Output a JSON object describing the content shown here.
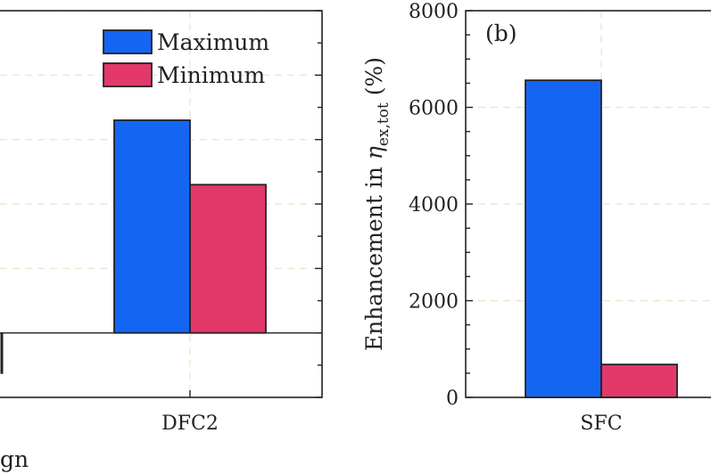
{
  "colors": {
    "maximum": "#1466f2",
    "minimum": "#e3386a"
  },
  "caption_fragment": "gn",
  "chart_data": [
    {
      "panel": "a",
      "type": "bar",
      "categories": [
        "DFC2"
      ],
      "series": [
        {
          "name": "Maximum",
          "values": [
            0.66
          ]
        },
        {
          "name": "Minimum",
          "values": [
            0.46
          ]
        }
      ],
      "baseline": 0,
      "ylim": [
        -0.2,
        1.0
      ],
      "y_gridlines": [
        0.2,
        0.4,
        0.6,
        0.8,
        1.0
      ],
      "legend": {
        "entries": [
          "Maximum",
          "Minimum"
        ],
        "position": "top-right"
      },
      "note": "panel partially cropped on the left; y tick labels not visible"
    },
    {
      "panel": "b",
      "type": "bar",
      "title": "(b)",
      "categories": [
        "SFC"
      ],
      "series": [
        {
          "name": "Maximum",
          "values": [
            6560
          ]
        },
        {
          "name": "Minimum",
          "values": [
            680
          ]
        }
      ],
      "ylabel_prefix": "Enhancement in ",
      "ylabel_symbol": "η",
      "ylabel_subscript": "ex,tot",
      "ylabel_suffix": " (%)",
      "ylim": [
        0,
        8000
      ],
      "yticks": [
        0,
        2000,
        4000,
        6000,
        8000
      ],
      "ytick_labels": [
        "0",
        "2000",
        "4000",
        "6000",
        "8000"
      ],
      "grid": true
    }
  ]
}
